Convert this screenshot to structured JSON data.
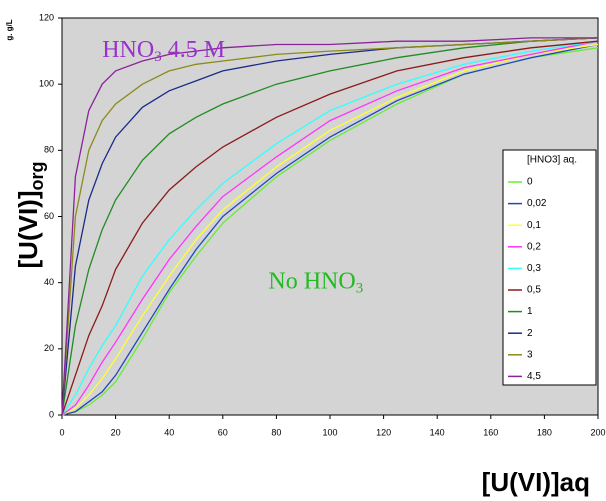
{
  "chart_data": {
    "type": "line",
    "ylabel": {
      "text": "[U(VI)]",
      "sub": "org"
    },
    "yunit": "g. g/L",
    "xlabel": "[U(VI)]aq",
    "annotations": [
      {
        "text": "HNO",
        "sub": "3",
        "rest": " 4.5 M",
        "color": "#9932cc",
        "x": 15,
        "y": 110
      },
      {
        "text": "No HNO",
        "sub": "3",
        "rest": "",
        "color": "#22bb22",
        "x": 77,
        "y": 40
      }
    ],
    "legend_title": "[HNO3] aq.",
    "x": [
      0,
      5,
      10,
      15,
      20,
      30,
      40,
      50,
      60,
      80,
      100,
      125,
      150,
      175,
      200
    ],
    "series": [
      {
        "name": "0",
        "color": "#66ee33",
        "values": [
          0,
          1,
          3,
          6,
          10,
          23,
          37,
          48,
          58,
          72,
          83,
          94,
          103,
          108,
          111
        ]
      },
      {
        "name": "0,02",
        "color": "#2244bb",
        "values": [
          0,
          1,
          4,
          7,
          12,
          25,
          38,
          50,
          60,
          73,
          84,
          95,
          103,
          108,
          112
        ]
      },
      {
        "name": "0,1",
        "color": "#ffff33",
        "values": [
          0,
          2,
          6,
          11,
          17,
          30,
          42,
          53,
          62,
          75,
          86,
          96,
          104,
          109,
          112
        ]
      },
      {
        "name": "0,2",
        "color": "#ff33ff",
        "values": [
          0,
          3,
          9,
          16,
          22,
          35,
          47,
          57,
          66,
          78,
          89,
          98,
          105,
          109,
          113
        ]
      },
      {
        "name": "0,3",
        "color": "#33ffff",
        "values": [
          0,
          6,
          14,
          21,
          27,
          42,
          53,
          62,
          70,
          82,
          92,
          100,
          106,
          110,
          113
        ]
      },
      {
        "name": "0,5",
        "color": "#8b1a1a",
        "values": [
          0,
          12,
          24,
          33,
          44,
          58,
          68,
          75,
          81,
          90,
          97,
          104,
          108,
          111,
          113
        ]
      },
      {
        "name": "1",
        "color": "#228b22",
        "values": [
          0,
          27,
          44,
          56,
          65,
          77,
          85,
          90,
          94,
          100,
          104,
          108,
          111,
          113,
          114
        ]
      },
      {
        "name": "2",
        "color": "#1a2a8a",
        "values": [
          0,
          45,
          65,
          76,
          84,
          93,
          98,
          101,
          104,
          107,
          109,
          111,
          112,
          113,
          114
        ]
      },
      {
        "name": "3",
        "color": "#8b8b1a",
        "values": [
          0,
          60,
          80,
          89,
          94,
          100,
          104,
          106,
          107,
          109,
          110,
          111,
          112,
          113,
          114
        ]
      },
      {
        "name": "4,5",
        "color": "#8b2299",
        "values": [
          0,
          72,
          92,
          100,
          104,
          107,
          109,
          110,
          111,
          112,
          112,
          113,
          113,
          114,
          114
        ]
      }
    ],
    "xlim": [
      0,
      200
    ],
    "xticks": [
      0,
      20,
      40,
      60,
      80,
      100,
      120,
      140,
      160,
      180,
      200
    ],
    "ylim": [
      0,
      120
    ],
    "yticks": [
      0,
      20,
      40,
      60,
      80,
      100,
      120
    ],
    "background": "#d4d4d4"
  }
}
